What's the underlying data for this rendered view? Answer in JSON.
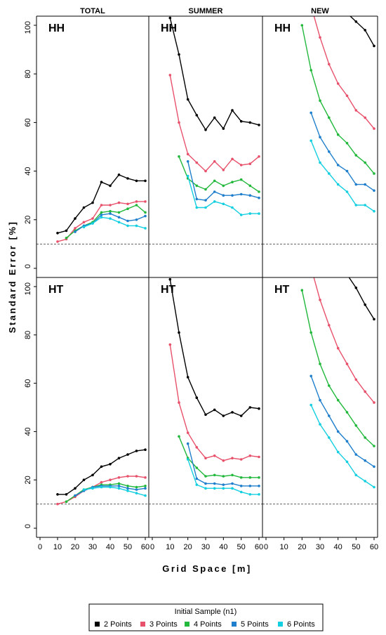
{
  "chart_data": {
    "type": "line",
    "column_titles": [
      "TOTAL",
      "SUMMER",
      "NEW"
    ],
    "row_labels": [
      "HH",
      "HT"
    ],
    "xlabel": "Grid Space [m]",
    "ylabel": "Standard Error [%]",
    "xlim": [
      0,
      60
    ],
    "ylim": [
      0,
      100
    ],
    "x_ticks": [
      0,
      10,
      20,
      30,
      40,
      50,
      60
    ],
    "y_ticks": [
      0,
      20,
      40,
      60,
      80,
      100
    ],
    "reference_line": 10,
    "legend": {
      "title": "Initial Sample (n1)",
      "placement": "bottom",
      "entries": [
        {
          "label": "2 Points",
          "color": "#000000"
        },
        {
          "label": "3 Points",
          "color": "#e8516b"
        },
        {
          "label": "4 Points",
          "color": "#22b83c"
        },
        {
          "label": "5 Points",
          "color": "#1f7fcc"
        },
        {
          "label": "6 Points",
          "color": "#14cfe0"
        }
      ]
    },
    "panels": [
      {
        "row": "HH",
        "column": "TOTAL",
        "series": [
          {
            "x": [
              10,
              15,
              20,
              25,
              30,
              35,
              40,
              45,
              50,
              55,
              60
            ],
            "y": [
              14.5,
              15.5,
              20.5,
              25,
              27,
              35.5,
              34,
              38.5,
              37,
              36,
              36
            ]
          },
          {
            "x": [
              10,
              15,
              20,
              25,
              30,
              35,
              40,
              45,
              50,
              55,
              60
            ],
            "y": [
              11,
              12,
              16.5,
              19,
              20.5,
              26,
              26,
              27,
              26.5,
              27.5,
              27.5
            ]
          },
          {
            "x": [
              15,
              20,
              25,
              30,
              35,
              40,
              45,
              50,
              55,
              60
            ],
            "y": [
              12.5,
              15.5,
              17.5,
              19,
              23,
              23.5,
              23,
              24.5,
              26,
              23
            ]
          },
          {
            "x": [
              20,
              25,
              30,
              35,
              40,
              45,
              50,
              55,
              60
            ],
            "y": [
              15,
              17.5,
              18.5,
              22,
              22.5,
              21,
              19.5,
              20,
              21.5
            ]
          },
          {
            "x": [
              25,
              30,
              35,
              40,
              45,
              50,
              55,
              60
            ],
            "y": [
              17,
              18.5,
              21,
              20.5,
              19,
              17.5,
              17.5,
              16.5
            ]
          }
        ]
      },
      {
        "row": "HH",
        "column": "SUMMER",
        "series": [
          {
            "x": [
              10,
              15,
              20,
              25,
              30,
              35,
              40,
              45,
              50,
              55,
              60
            ],
            "y": [
              103,
              88,
              69.5,
              63,
              57,
              62,
              57.5,
              65,
              60.5,
              60,
              59
            ]
          },
          {
            "x": [
              10,
              15,
              20,
              25,
              30,
              35,
              40,
              45,
              50,
              55,
              60
            ],
            "y": [
              79.5,
              60,
              47,
              43.5,
              40,
              44,
              40.5,
              45,
              42.5,
              43,
              46
            ]
          },
          {
            "x": [
              15,
              20,
              25,
              30,
              35,
              40,
              45,
              50,
              55,
              60
            ],
            "y": [
              46,
              37,
              34,
              32.5,
              36,
              34,
              35.5,
              36.5,
              34,
              31.5
            ]
          },
          {
            "x": [
              20,
              25,
              30,
              35,
              40,
              45,
              50,
              55,
              60
            ],
            "y": [
              44,
              28.5,
              28,
              31.5,
              30,
              30,
              30.5,
              30,
              29
            ]
          },
          {
            "x": [
              20,
              25,
              30,
              35,
              40,
              45,
              50,
              55,
              60
            ],
            "y": [
              38,
              25,
              25,
              27.5,
              26.5,
              25,
              22,
              22.5,
              22.5
            ]
          }
        ]
      },
      {
        "row": "HH",
        "column": "NEW",
        "series": [
          {
            "x": [
              45,
              50,
              55,
              60
            ],
            "y": [
              105,
              101.5,
              98,
              91.5
            ]
          },
          {
            "x": [
              25,
              30,
              35,
              40,
              45,
              50,
              55,
              60
            ],
            "y": [
              108,
              95,
              84,
              76,
              71,
              65,
              62,
              57.5
            ]
          },
          {
            "x": [
              20,
              25,
              30,
              35,
              40,
              45,
              50,
              55,
              60
            ],
            "y": [
              100,
              81.5,
              69,
              62,
              55,
              51.5,
              46.5,
              43.5,
              39
            ]
          },
          {
            "x": [
              25,
              30,
              35,
              40,
              45,
              50,
              55,
              60
            ],
            "y": [
              64,
              54,
              48,
              42.5,
              40,
              34.5,
              34.5,
              32
            ]
          },
          {
            "x": [
              25,
              30,
              35,
              40,
              45,
              50,
              55,
              60
            ],
            "y": [
              52.5,
              43.5,
              39,
              34.5,
              31.5,
              26,
              26,
              23.5
            ]
          }
        ]
      },
      {
        "row": "HT",
        "column": "TOTAL",
        "series": [
          {
            "x": [
              10,
              15,
              20,
              25,
              30,
              35,
              40,
              45,
              50,
              55,
              60
            ],
            "y": [
              14,
              14,
              16.5,
              20,
              22,
              25.5,
              26.5,
              29,
              30.5,
              32,
              32.5
            ]
          },
          {
            "x": [
              10,
              15,
              20,
              25,
              30,
              35,
              40,
              45,
              50,
              55,
              60
            ],
            "y": [
              10,
              11,
              13,
              15.5,
              17,
              19,
              20,
              21,
              21.5,
              21.5,
              21
            ]
          },
          {
            "x": [
              15,
              20,
              25,
              30,
              35,
              40,
              45,
              50,
              55,
              60
            ],
            "y": [
              11,
              13.5,
              16,
              17,
              18,
              18,
              18.5,
              17.5,
              17,
              17.5
            ]
          },
          {
            "x": [
              20,
              25,
              30,
              35,
              40,
              45,
              50,
              55,
              60
            ],
            "y": [
              13.5,
              15.5,
              17,
              17.5,
              17.5,
              17.5,
              16.5,
              16,
              16.5
            ]
          },
          {
            "x": [
              25,
              30,
              35,
              40,
              45,
              50,
              55,
              60
            ],
            "y": [
              16,
              16.5,
              17,
              17,
              16.5,
              15.5,
              14.5,
              13.5
            ]
          }
        ]
      },
      {
        "row": "HT",
        "column": "SUMMER",
        "series": [
          {
            "x": [
              10,
              15,
              20,
              25,
              30,
              35,
              40,
              45,
              50,
              55,
              60
            ],
            "y": [
              103,
              81,
              62.5,
              54,
              47,
              49,
              46.5,
              48,
              46.5,
              50,
              49.5
            ]
          },
          {
            "x": [
              10,
              15,
              20,
              25,
              30,
              35,
              40,
              45,
              50,
              55,
              60
            ],
            "y": [
              76,
              52,
              39.5,
              33.5,
              29,
              30,
              28,
              29,
              28.5,
              30,
              29.5
            ]
          },
          {
            "x": [
              15,
              20,
              25,
              30,
              35,
              40,
              45,
              50,
              55,
              60
            ],
            "y": [
              38,
              29,
              25,
              21.5,
              22,
              21.5,
              22,
              21,
              21,
              21
            ]
          },
          {
            "x": [
              20,
              25,
              30,
              35,
              40,
              45,
              50,
              55,
              60
            ],
            "y": [
              35,
              20.5,
              18.5,
              18.5,
              18,
              18.5,
              17.5,
              17.5,
              17.5
            ]
          },
          {
            "x": [
              20,
              25,
              30,
              35,
              40,
              45,
              50,
              55,
              60
            ],
            "y": [
              28.5,
              18,
              16.5,
              16.5,
              16.5,
              16.5,
              15,
              14,
              14
            ]
          }
        ]
      },
      {
        "row": "HT",
        "column": "NEW",
        "series": [
          {
            "x": [
              45,
              50,
              55,
              60
            ],
            "y": [
              105,
              99.5,
              92.5,
              86.5
            ]
          },
          {
            "x": [
              25,
              30,
              35,
              40,
              45,
              50,
              55,
              60
            ],
            "y": [
              108,
              94.5,
              84,
              74.5,
              68,
              61.5,
              56.5,
              52
            ]
          },
          {
            "x": [
              20,
              25,
              30,
              35,
              40,
              45,
              50,
              55,
              60
            ],
            "y": [
              98.5,
              81,
              68,
              59,
              53,
              48,
              42.5,
              37.5,
              34
            ]
          },
          {
            "x": [
              25,
              30,
              35,
              40,
              45,
              50,
              55,
              60
            ],
            "y": [
              63,
              53,
              46.5,
              40,
              36,
              30.5,
              28,
              25.5
            ]
          },
          {
            "x": [
              25,
              30,
              35,
              40,
              45,
              50,
              55,
              60
            ],
            "y": [
              51,
              43,
              37.5,
              31.5,
              27.5,
              22,
              19.5,
              17
            ]
          }
        ]
      }
    ]
  }
}
